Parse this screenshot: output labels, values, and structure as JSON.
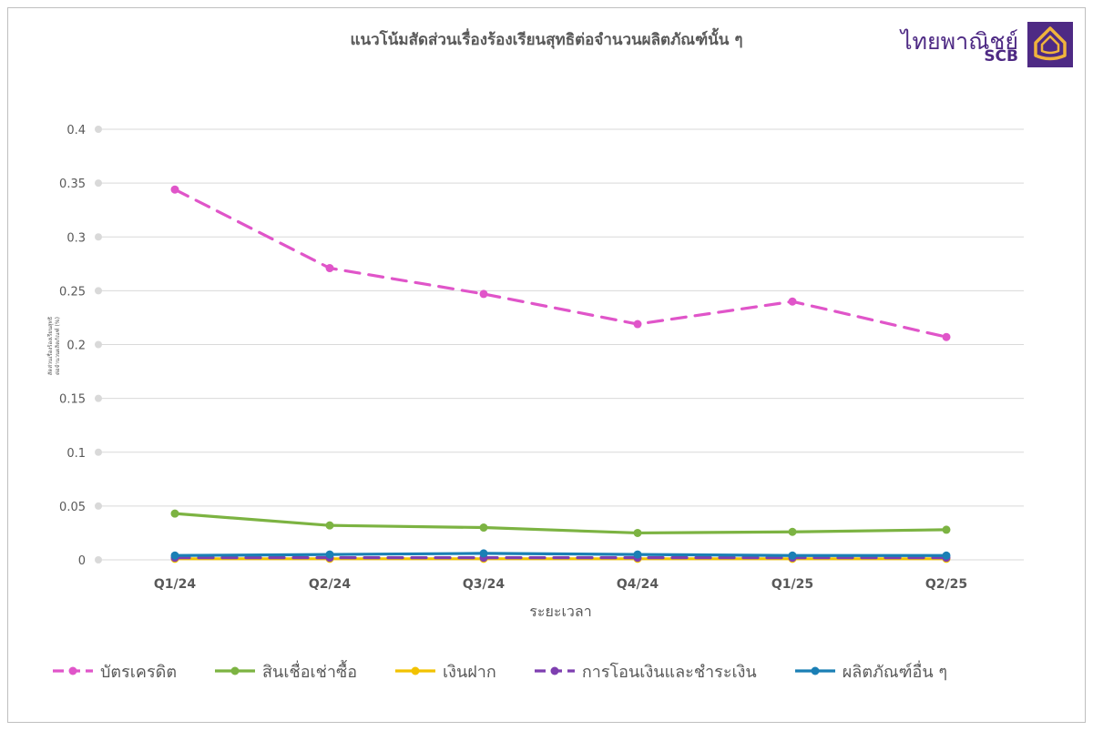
{
  "chart_data": {
    "type": "line",
    "title": "แนวโน้มสัดส่วนเรื่องร้องเรียนสุทธิต่อจำนวนผลิตภัณฑ์นั้น ๆ",
    "xlabel": "ระยะเวลา",
    "ylabel": "สัดส่วนเรื่องร้องเรียนสุทธิ\nต่อจำนวนผลิตภัณฑ์ (%)",
    "categories": [
      "Q1/24",
      "Q2/24",
      "Q3/24",
      "Q4/24",
      "Q1/25",
      "Q2/25"
    ],
    "ylim": [
      0,
      0.4
    ],
    "yticks": [
      "0",
      "0.05",
      "0.1",
      "0.15",
      "0.2",
      "0.25",
      "0.3",
      "0.35",
      "0.4"
    ],
    "grid": true,
    "legend_position": "bottom",
    "series": [
      {
        "name": "บัตรเครดิต",
        "values": [
          0.344,
          0.271,
          0.247,
          0.219,
          0.24,
          0.207
        ],
        "color": "#e055c9",
        "dashed": true
      },
      {
        "name": "สินเชื่อเช่าซื้อ",
        "values": [
          0.043,
          0.032,
          0.03,
          0.025,
          0.026,
          0.028
        ],
        "color": "#7cb342",
        "dashed": false
      },
      {
        "name": "เงินฝาก",
        "values": [
          0.001,
          0.001,
          0.001,
          0.001,
          0.001,
          0.001
        ],
        "color": "#f2c200",
        "dashed": false
      },
      {
        "name": "การโอนเงินและชำระเงิน",
        "values": [
          0.002,
          0.002,
          0.002,
          0.002,
          0.002,
          0.002
        ],
        "color": "#7e3fb0",
        "dashed": true
      },
      {
        "name": "ผลิตภัณฑ์อื่น ๆ",
        "values": [
          0.004,
          0.005,
          0.006,
          0.005,
          0.004,
          0.004
        ],
        "color": "#1a7fb5",
        "dashed": false
      }
    ]
  },
  "logo": {
    "thai": "ไทยพาณิชย์",
    "english": "SCB",
    "brand_color": "#4e2a84",
    "mark_color": "#f0b43c"
  }
}
